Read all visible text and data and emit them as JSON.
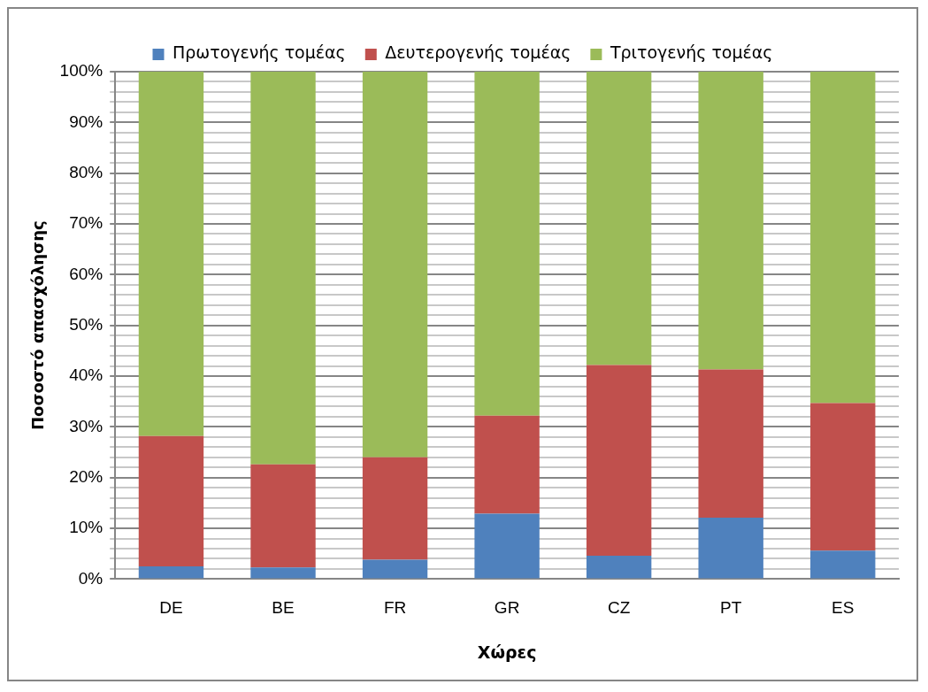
{
  "chart_data": {
    "type": "bar",
    "stacked": true,
    "xlabel": "Χώρες",
    "ylabel": "Ποσοστό απασχόλησης",
    "categories": [
      "DE",
      "BE",
      "FR",
      "GR",
      "CZ",
      "PT",
      "ES"
    ],
    "series": [
      {
        "name": "Πρωτογενής τομέας",
        "color": "#4f81bd",
        "values": [
          2.5,
          2.3,
          3.8,
          12.9,
          4.6,
          12.1,
          5.6
        ]
      },
      {
        "name": "Δευτερογενής τομέας",
        "color": "#c0504d",
        "values": [
          25.7,
          20.3,
          20.2,
          19.3,
          37.6,
          29.2,
          29.1
        ]
      },
      {
        "name": "Τριτογενής τομέας",
        "color": "#9bbb59",
        "values": [
          71.8,
          77.4,
          76.0,
          67.8,
          57.8,
          58.7,
          65.3
        ]
      }
    ],
    "ylim": [
      0,
      100
    ],
    "yticks": [
      {
        "value": 0,
        "label": "0%"
      },
      {
        "value": 2,
        "label": null
      },
      {
        "value": 4,
        "label": null
      },
      {
        "value": 6,
        "label": null
      },
      {
        "value": 8,
        "label": null
      },
      {
        "value": 10,
        "label": "10%"
      },
      {
        "value": 12,
        "label": null
      },
      {
        "value": 14,
        "label": null
      },
      {
        "value": 16,
        "label": null
      },
      {
        "value": 18,
        "label": null
      },
      {
        "value": 20,
        "label": "20%"
      },
      {
        "value": 22,
        "label": null
      },
      {
        "value": 24,
        "label": null
      },
      {
        "value": 26,
        "label": null
      },
      {
        "value": 28,
        "label": null
      },
      {
        "value": 30,
        "label": "30%"
      },
      {
        "value": 32,
        "label": null
      },
      {
        "value": 34,
        "label": null
      },
      {
        "value": 36,
        "label": null
      },
      {
        "value": 38,
        "label": null
      },
      {
        "value": 40,
        "label": "40%"
      },
      {
        "value": 42,
        "label": null
      },
      {
        "value": 44,
        "label": null
      },
      {
        "value": 46,
        "label": null
      },
      {
        "value": 48,
        "label": null
      },
      {
        "value": 50,
        "label": "50%"
      },
      {
        "value": 52,
        "label": null
      },
      {
        "value": 54,
        "label": null
      },
      {
        "value": 56,
        "label": null
      },
      {
        "value": 58,
        "label": null
      },
      {
        "value": 60,
        "label": "60%"
      },
      {
        "value": 62,
        "label": null
      },
      {
        "value": 64,
        "label": null
      },
      {
        "value": 66,
        "label": null
      },
      {
        "value": 68,
        "label": null
      },
      {
        "value": 70,
        "label": "70%"
      },
      {
        "value": 72,
        "label": null
      },
      {
        "value": 74,
        "label": null
      },
      {
        "value": 76,
        "label": null
      },
      {
        "value": 78,
        "label": null
      },
      {
        "value": 80,
        "label": "80%"
      },
      {
        "value": 82,
        "label": null
      },
      {
        "value": 84,
        "label": null
      },
      {
        "value": 86,
        "label": null
      },
      {
        "value": 88,
        "label": null
      },
      {
        "value": 90,
        "label": "90%"
      },
      {
        "value": 92,
        "label": null
      },
      {
        "value": 94,
        "label": null
      },
      {
        "value": 96,
        "label": null
      },
      {
        "value": 98,
        "label": null
      },
      {
        "value": 100,
        "label": "100%"
      }
    ],
    "grid": "y",
    "legend": "top"
  }
}
